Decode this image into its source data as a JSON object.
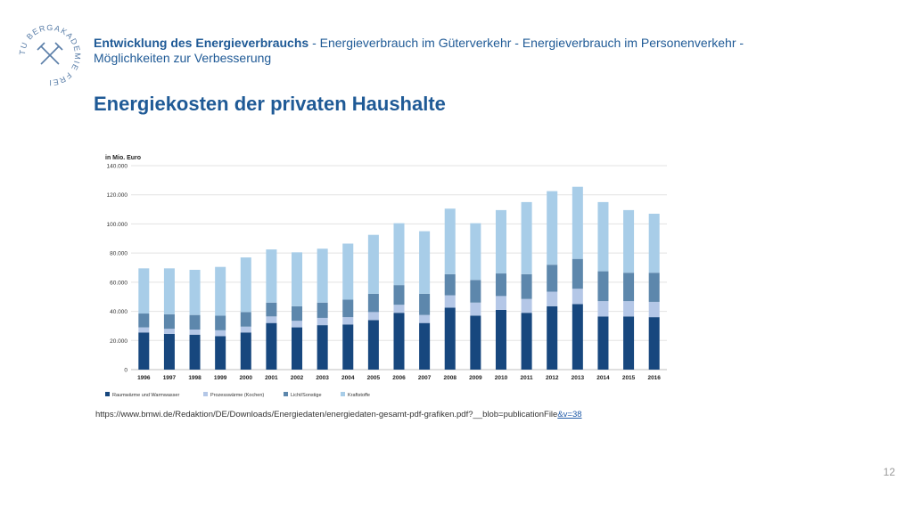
{
  "logo": {
    "text": "TU BERGAKADEMIE FREIBERG"
  },
  "header": {
    "title_bold": "Entwicklung des Energieverbrauchs",
    "title_rest": " - Energieverbrauch im Güterverkehr - Energieverbrauch im Personenverkehr - Möglichkeiten zur Verbesserung"
  },
  "slide_title": "Energiekosten der privaten Haushalte",
  "chart_data": {
    "type": "bar",
    "stacked": true,
    "unit_label": "in Mio. Euro",
    "categories": [
      "1996",
      "1997",
      "1998",
      "1999",
      "2000",
      "2001",
      "2002",
      "2003",
      "2004",
      "2005",
      "2006",
      "2007",
      "2008",
      "2009",
      "2010",
      "2011",
      "2012",
      "2013",
      "2014",
      "2015",
      "2016"
    ],
    "ylim": [
      0,
      140000
    ],
    "yticks": [
      0,
      20000,
      40000,
      60000,
      80000,
      100000,
      120000,
      140000
    ],
    "ytick_labels": [
      "0",
      "20.000",
      "40.000",
      "60.000",
      "80.000",
      "100.000",
      "120.000",
      "140.000"
    ],
    "grid": true,
    "legend_position": "bottom",
    "series": [
      {
        "name": "Raumwärme und Warmwasser",
        "color": "#17477e",
        "values": [
          25500,
          24500,
          24000,
          23000,
          25500,
          32000,
          29000,
          30500,
          31000,
          34000,
          39000,
          32000,
          42500,
          37000,
          41000,
          39000,
          43500,
          45000,
          36500,
          36500,
          36000
        ]
      },
      {
        "name": "Prozesswärme (Kochen)",
        "color": "#b4c7e7",
        "values": [
          3500,
          3500,
          3500,
          4000,
          4000,
          4500,
          4500,
          5000,
          5000,
          5500,
          5500,
          5500,
          8500,
          9000,
          9500,
          9500,
          10000,
          10500,
          10500,
          10500,
          10500
        ]
      },
      {
        "name": "Licht/Sonstige",
        "color": "#5d87ac",
        "values": [
          9500,
          10000,
          10000,
          10000,
          10000,
          9500,
          10000,
          10500,
          12000,
          12500,
          13500,
          14500,
          14500,
          15500,
          15500,
          17000,
          18500,
          20500,
          20500,
          19500,
          20000
        ]
      },
      {
        "name": "Kraftstoffe",
        "color": "#a8cde8",
        "values": [
          31000,
          31500,
          31000,
          33500,
          37500,
          36500,
          37000,
          37000,
          38500,
          40500,
          42500,
          43000,
          45000,
          39000,
          43500,
          49500,
          50500,
          49500,
          47500,
          43000,
          40500
        ]
      }
    ]
  },
  "source": {
    "text": "https://www.bmwi.de/Redaktion/DE/Downloads/Energiedaten/energiedaten-gesamt-pdf-grafiken.pdf?__blob=publicationFile",
    "link": "&v=38"
  },
  "page_number": "12"
}
